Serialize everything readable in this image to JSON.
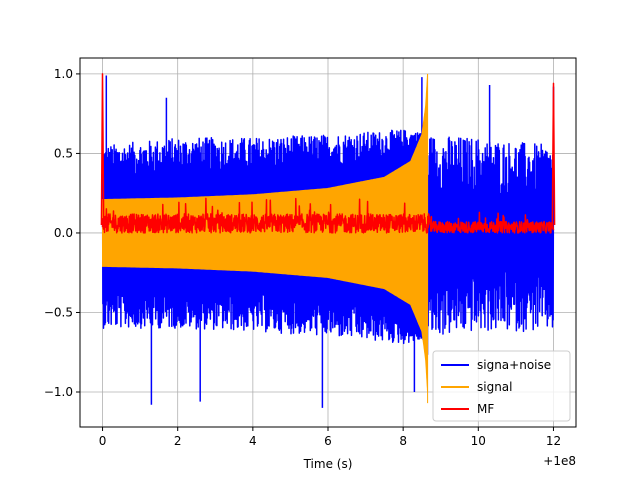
{
  "chart_data": {
    "type": "line",
    "title": "",
    "xlabel": "Time (s)",
    "ylabel": "",
    "x_offset_text": "+1e8",
    "xlim": [
      -0.6,
      12.6
    ],
    "ylim": [
      -1.22,
      1.1
    ],
    "xticks": [
      0,
      2,
      4,
      6,
      8,
      10,
      12
    ],
    "xtick_labels": [
      "0",
      "2",
      "4",
      "6",
      "8",
      "10",
      "12"
    ],
    "yticks": [
      1.0,
      0.5,
      0.0,
      -0.5,
      -1.0
    ],
    "ytick_labels": [
      "1.0",
      "0.5",
      "0.0",
      "−0.5",
      "−1.0"
    ],
    "grid": true,
    "legend_position": "lower-right",
    "series": [
      {
        "name": "signa+noise",
        "color": "#0000ff",
        "description": "dense noisy trace from 0 to 12, envelope roughly ±0.6 with spikes to about ±1.0",
        "x_range": [
          0,
          12
        ],
        "upper_envelope": [
          [
            0,
            0.55
          ],
          [
            2,
            0.6
          ],
          [
            4,
            0.6
          ],
          [
            6,
            0.62
          ],
          [
            8,
            0.65
          ],
          [
            8.65,
            0.62
          ],
          [
            10,
            0.6
          ],
          [
            12,
            0.55
          ]
        ],
        "lower_envelope": [
          [
            0,
            -0.6
          ],
          [
            2,
            -0.6
          ],
          [
            4,
            -0.62
          ],
          [
            6,
            -0.65
          ],
          [
            8,
            -0.7
          ],
          [
            8.65,
            -0.66
          ],
          [
            10,
            -0.62
          ],
          [
            12,
            -0.62
          ]
        ],
        "peaks": [
          [
            0.1,
            0.99
          ],
          [
            1.7,
            0.85
          ],
          [
            8.5,
            0.98
          ],
          [
            10.3,
            0.93
          ],
          [
            12,
            0.92
          ]
        ],
        "troughs": [
          [
            1.3,
            -1.08
          ],
          [
            2.6,
            -1.06
          ],
          [
            5.85,
            -1.1
          ],
          [
            8.3,
            -1.0
          ]
        ]
      },
      {
        "name": "signal",
        "color": "#ffa500",
        "description": "chirp filled band with growing amplitude, ending abruptly at t ≈ 8.65",
        "x_range": [
          0,
          8.65
        ],
        "amplitude": [
          [
            0,
            0.21
          ],
          [
            2,
            0.22
          ],
          [
            4,
            0.24
          ],
          [
            6,
            0.28
          ],
          [
            7.5,
            0.35
          ],
          [
            8.2,
            0.45
          ],
          [
            8.5,
            0.62
          ],
          [
            8.6,
            0.8
          ],
          [
            8.65,
            1.0
          ]
        ],
        "min_value": -1.07
      },
      {
        "name": "MF",
        "color": "#ff0000",
        "description": "matched filter output, noisy around 0.05 with peaks at both ends",
        "x_range": [
          0,
          12
        ],
        "baseline_band": [
          0.0,
          0.12
        ],
        "peaks": [
          [
            0.0,
            1.0
          ],
          [
            12.0,
            0.94
          ]
        ]
      }
    ]
  }
}
